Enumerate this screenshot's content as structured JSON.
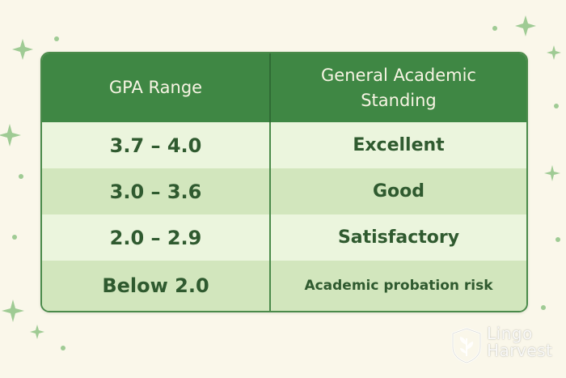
{
  "table": {
    "headers": [
      "GPA Range",
      "General Academic Standing"
    ],
    "rows": [
      [
        "3.7 – 4.0",
        "Excellent"
      ],
      [
        "3.0 – 3.6",
        "Good"
      ],
      [
        "2.0 – 2.9",
        "Satisfactory"
      ],
      [
        "Below 2.0",
        "Academic probation risk"
      ]
    ]
  },
  "logo": {
    "line1": "Lingo",
    "line2": "Harvest"
  },
  "colors": {
    "header_green": "#3f8744",
    "row_light": "#ebf5dd",
    "row_dark": "#d2e6bd",
    "text_green": "#2f5a2f",
    "background": "#faf7ea",
    "sparkle": "#9fcb94"
  }
}
